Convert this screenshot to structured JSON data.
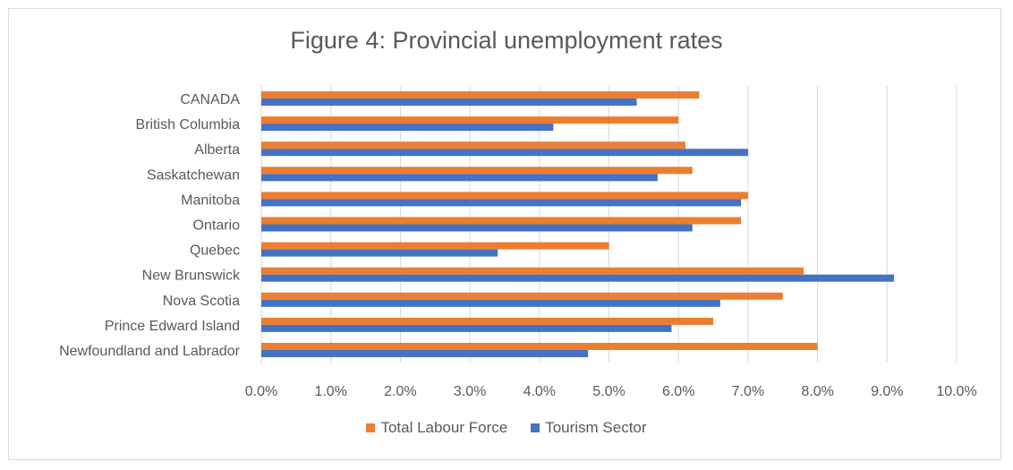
{
  "chart_data": {
    "type": "bar",
    "orientation": "horizontal",
    "title": "Figure 4: Provincial unemployment rates",
    "xlabel": "",
    "ylabel": "",
    "categories": [
      "CANADA",
      "British Columbia",
      "Alberta",
      "Saskatchewan",
      "Manitoba",
      "Ontario",
      "Quebec",
      "New Brunswick",
      "Nova Scotia",
      "Prince Edward Island",
      "Newfoundland and Labrador"
    ],
    "series": [
      {
        "name": "Total Labour Force",
        "color": "#ED7D31",
        "values": [
          0.063,
          0.06,
          0.061,
          0.062,
          0.07,
          0.069,
          0.05,
          0.078,
          0.075,
          0.065,
          0.08
        ]
      },
      {
        "name": "Tourism Sector",
        "color": "#4472C4",
        "values": [
          0.054,
          0.042,
          0.07,
          0.057,
          0.069,
          0.062,
          0.034,
          0.091,
          0.066,
          0.059,
          0.047
        ]
      }
    ],
    "xlim": [
      0,
      0.1
    ],
    "xticks": [
      0,
      0.01,
      0.02,
      0.03,
      0.04,
      0.05,
      0.06,
      0.07,
      0.08,
      0.09,
      0.1
    ],
    "xtick_labels": [
      "0.0%",
      "1.0%",
      "2.0%",
      "3.0%",
      "4.0%",
      "5.0%",
      "6.0%",
      "7.0%",
      "8.0%",
      "9.0%",
      "10.0%"
    ],
    "grid": "vertical",
    "legend_position": "bottom"
  }
}
